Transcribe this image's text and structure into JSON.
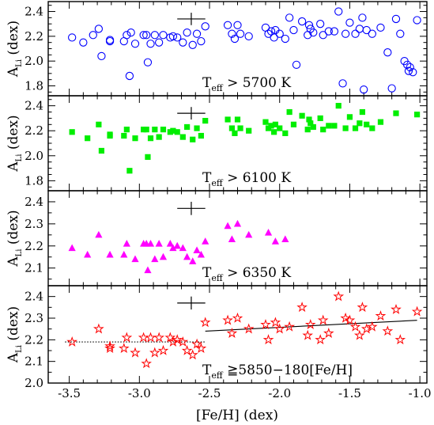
{
  "chart_data": {
    "type": "scatter",
    "x_label": "[Fe/H] (dex)",
    "x_ticks": [
      "-3.5",
      "-3.0",
      "-2.5",
      "-2.0",
      "-1.5",
      "-1.0"
    ],
    "x_tick_values": [
      -3.5,
      -3.0,
      -2.5,
      -2.0,
      -1.5,
      -1.0
    ],
    "xlim": [
      -3.65,
      -0.95
    ],
    "panels": [
      {
        "id": "p1",
        "ylim": [
          1.72,
          2.48
        ],
        "y_ticks": [
          "1.8",
          "2.0",
          "2.2",
          "2.4"
        ],
        "y_tick_values": [
          1.8,
          2.0,
          2.2,
          2.4
        ],
        "ylabel_main": "A",
        "ylabel_sub": "Li",
        "ylabel_unit": " (dex)",
        "annotation_main": "T",
        "annotation_sub": "eff",
        "annotation_rest": " > 5700 K",
        "marker": "circle",
        "color": "#0000ff",
        "errorbar": {
          "x": -2.63,
          "y": 2.34,
          "xerr": 0.1,
          "yerr": 0.05
        },
        "points": [
          [
            -3.48,
            2.19
          ],
          [
            -3.4,
            2.15
          ],
          [
            -3.33,
            2.21
          ],
          [
            -3.29,
            2.26
          ],
          [
            -3.27,
            2.04
          ],
          [
            -3.21,
            2.16
          ],
          [
            -3.21,
            2.17
          ],
          [
            -3.11,
            2.16
          ],
          [
            -3.09,
            2.21
          ],
          [
            -3.07,
            1.88
          ],
          [
            -3.06,
            2.23
          ],
          [
            -3.03,
            2.14
          ],
          [
            -2.97,
            2.21
          ],
          [
            -2.95,
            2.21
          ],
          [
            -2.94,
            1.99
          ],
          [
            -2.92,
            2.14
          ],
          [
            -2.89,
            2.21
          ],
          [
            -2.86,
            2.15
          ],
          [
            -2.83,
            2.21
          ],
          [
            -2.78,
            2.19
          ],
          [
            -2.76,
            2.2
          ],
          [
            -2.73,
            2.19
          ],
          [
            -2.69,
            2.15
          ],
          [
            -2.66,
            2.23
          ],
          [
            -2.62,
            2.13
          ],
          [
            -2.59,
            2.22
          ],
          [
            -2.56,
            2.16
          ],
          [
            -2.53,
            2.28
          ],
          [
            -2.37,
            2.29
          ],
          [
            -2.34,
            2.22
          ],
          [
            -2.32,
            2.18
          ],
          [
            -2.3,
            2.29
          ],
          [
            -2.28,
            2.22
          ],
          [
            -2.22,
            2.2
          ],
          [
            -2.1,
            2.27
          ],
          [
            -2.08,
            2.22
          ],
          [
            -2.06,
            2.24
          ],
          [
            -2.04,
            2.19
          ],
          [
            -2.03,
            2.25
          ],
          [
            -2.0,
            2.22
          ],
          [
            -1.96,
            2.18
          ],
          [
            -1.93,
            2.35
          ],
          [
            -1.9,
            2.25
          ],
          [
            -1.88,
            1.97
          ],
          [
            -1.84,
            2.32
          ],
          [
            -1.8,
            2.21
          ],
          [
            -1.79,
            2.29
          ],
          [
            -1.78,
            2.26
          ],
          [
            -1.76,
            2.23
          ],
          [
            -1.71,
            2.3
          ],
          [
            -1.69,
            2.21
          ],
          [
            -1.65,
            2.24
          ],
          [
            -1.61,
            2.24
          ],
          [
            -1.58,
            2.4
          ],
          [
            -1.55,
            1.82
          ],
          [
            -1.53,
            2.22
          ],
          [
            -1.5,
            2.31
          ],
          [
            -1.46,
            2.22
          ],
          [
            -1.43,
            2.26
          ],
          [
            -1.41,
            2.35
          ],
          [
            -1.4,
            1.77
          ],
          [
            -1.38,
            2.25
          ],
          [
            -1.34,
            2.22
          ],
          [
            -1.28,
            2.27
          ],
          [
            -1.23,
            2.07
          ],
          [
            -1.2,
            1.78
          ],
          [
            -1.17,
            2.34
          ],
          [
            -1.14,
            2.22
          ],
          [
            -1.11,
            2.0
          ],
          [
            -1.09,
            1.97
          ],
          [
            -1.08,
            1.92
          ],
          [
            -1.07,
            1.95
          ],
          [
            -1.05,
            1.91
          ],
          [
            -1.02,
            2.33
          ]
        ]
      },
      {
        "id": "p2",
        "ylim": [
          1.72,
          2.48
        ],
        "y_ticks": [
          "1.8",
          "2.0",
          "2.2",
          "2.4"
        ],
        "y_tick_values": [
          1.8,
          2.0,
          2.2,
          2.4
        ],
        "ylabel_main": "A",
        "ylabel_sub": "Li",
        "ylabel_unit": " (dex)",
        "annotation_main": "T",
        "annotation_sub": "eff",
        "annotation_rest": " > 6100 K",
        "marker": "square",
        "color": "#00ee00",
        "errorbar": {
          "x": -2.63,
          "y": 2.34,
          "xerr": 0.1,
          "yerr": 0.05
        },
        "points": [
          [
            -3.48,
            2.19
          ],
          [
            -3.37,
            2.14
          ],
          [
            -3.29,
            2.25
          ],
          [
            -3.27,
            2.04
          ],
          [
            -3.21,
            2.16
          ],
          [
            -3.21,
            2.17
          ],
          [
            -3.11,
            2.16
          ],
          [
            -3.09,
            2.21
          ],
          [
            -3.07,
            1.88
          ],
          [
            -3.03,
            2.14
          ],
          [
            -2.97,
            2.21
          ],
          [
            -2.95,
            2.21
          ],
          [
            -2.94,
            1.99
          ],
          [
            -2.92,
            2.14
          ],
          [
            -2.89,
            2.21
          ],
          [
            -2.86,
            2.15
          ],
          [
            -2.83,
            2.21
          ],
          [
            -2.78,
            2.19
          ],
          [
            -2.76,
            2.2
          ],
          [
            -2.73,
            2.19
          ],
          [
            -2.69,
            2.15
          ],
          [
            -2.66,
            2.23
          ],
          [
            -2.62,
            2.13
          ],
          [
            -2.59,
            2.22
          ],
          [
            -2.56,
            2.16
          ],
          [
            -2.53,
            2.28
          ],
          [
            -2.37,
            2.29
          ],
          [
            -2.34,
            2.22
          ],
          [
            -2.32,
            2.18
          ],
          [
            -2.3,
            2.29
          ],
          [
            -2.28,
            2.22
          ],
          [
            -2.22,
            2.2
          ],
          [
            -2.1,
            2.27
          ],
          [
            -2.08,
            2.22
          ],
          [
            -2.06,
            2.24
          ],
          [
            -2.04,
            2.19
          ],
          [
            -2.03,
            2.25
          ],
          [
            -2.0,
            2.22
          ],
          [
            -1.96,
            2.18
          ],
          [
            -1.93,
            2.35
          ],
          [
            -1.9,
            2.25
          ],
          [
            -1.84,
            2.32
          ],
          [
            -1.8,
            2.21
          ],
          [
            -1.79,
            2.29
          ],
          [
            -1.78,
            2.26
          ],
          [
            -1.76,
            2.23
          ],
          [
            -1.71,
            2.3
          ],
          [
            -1.69,
            2.21
          ],
          [
            -1.65,
            2.24
          ],
          [
            -1.61,
            2.24
          ],
          [
            -1.58,
            2.4
          ],
          [
            -1.53,
            2.22
          ],
          [
            -1.5,
            2.31
          ],
          [
            -1.46,
            2.22
          ],
          [
            -1.43,
            2.26
          ],
          [
            -1.41,
            2.35
          ],
          [
            -1.38,
            2.25
          ],
          [
            -1.34,
            2.22
          ],
          [
            -1.28,
            2.27
          ],
          [
            -1.17,
            2.34
          ],
          [
            -1.02,
            2.33
          ]
        ]
      },
      {
        "id": "p3",
        "ylim": [
          2.02,
          2.45
        ],
        "y_ticks": [
          "2.1",
          "2.2",
          "2.3",
          "2.4"
        ],
        "y_tick_values": [
          2.1,
          2.2,
          2.3,
          2.4
        ],
        "ylabel_main": "A",
        "ylabel_sub": "Li",
        "ylabel_unit": " (dex)",
        "annotation_main": "T",
        "annotation_sub": "eff",
        "annotation_rest": " > 6350 K",
        "marker": "triangle",
        "color": "#ff00ff",
        "errorbar": {
          "x": -2.63,
          "y": 2.37,
          "xerr": 0.1,
          "yerr": 0.03
        },
        "points": [
          [
            -3.48,
            2.19
          ],
          [
            -3.37,
            2.16
          ],
          [
            -3.29,
            2.25
          ],
          [
            -3.21,
            2.16
          ],
          [
            -3.11,
            2.16
          ],
          [
            -3.09,
            2.21
          ],
          [
            -3.03,
            2.14
          ],
          [
            -2.97,
            2.21
          ],
          [
            -2.95,
            2.21
          ],
          [
            -2.94,
            2.09
          ],
          [
            -2.92,
            2.21
          ],
          [
            -2.89,
            2.14
          ],
          [
            -2.86,
            2.21
          ],
          [
            -2.83,
            2.15
          ],
          [
            -2.78,
            2.21
          ],
          [
            -2.76,
            2.19
          ],
          [
            -2.73,
            2.2
          ],
          [
            -2.69,
            2.19
          ],
          [
            -2.66,
            2.15
          ],
          [
            -2.62,
            2.13
          ],
          [
            -2.59,
            2.18
          ],
          [
            -2.56,
            2.16
          ],
          [
            -2.53,
            2.22
          ],
          [
            -2.37,
            2.29
          ],
          [
            -2.34,
            2.23
          ],
          [
            -2.3,
            2.3
          ],
          [
            -2.22,
            2.25
          ],
          [
            -2.08,
            2.26
          ],
          [
            -2.03,
            2.22
          ],
          [
            -1.96,
            2.23
          ]
        ]
      },
      {
        "id": "p4",
        "ylim": [
          2.0,
          2.45
        ],
        "y_ticks": [
          "2.0",
          "2.1",
          "2.2",
          "2.3",
          "2.4"
        ],
        "y_tick_values": [
          2.0,
          2.1,
          2.2,
          2.3,
          2.4
        ],
        "ylabel_main": "A",
        "ylabel_sub": "Li",
        "ylabel_unit": " (dex)",
        "annotation_main": "T",
        "annotation_sub": "eff",
        "annotation_rest": " ≧5850−180[Fe/H]",
        "marker": "star",
        "color": "#ff0000",
        "errorbar": {
          "x": -2.63,
          "y": 2.37,
          "xerr": 0.1,
          "yerr": 0.03
        },
        "fit_lines": [
          {
            "style": "dotted",
            "x": [
              -3.53,
              -2.53
            ],
            "y": [
              2.19,
              2.19
            ]
          },
          {
            "style": "solid",
            "x": [
              -2.53,
              -1.02
            ],
            "y": [
              2.24,
              2.29
            ]
          }
        ],
        "points": [
          [
            -3.48,
            2.19
          ],
          [
            -3.29,
            2.25
          ],
          [
            -3.21,
            2.16
          ],
          [
            -3.21,
            2.17
          ],
          [
            -3.11,
            2.16
          ],
          [
            -3.09,
            2.21
          ],
          [
            -3.03,
            2.14
          ],
          [
            -2.97,
            2.21
          ],
          [
            -2.95,
            2.09
          ],
          [
            -2.92,
            2.21
          ],
          [
            -2.89,
            2.14
          ],
          [
            -2.86,
            2.21
          ],
          [
            -2.83,
            2.15
          ],
          [
            -2.78,
            2.21
          ],
          [
            -2.76,
            2.19
          ],
          [
            -2.73,
            2.2
          ],
          [
            -2.69,
            2.19
          ],
          [
            -2.66,
            2.15
          ],
          [
            -2.62,
            2.13
          ],
          [
            -2.59,
            2.18
          ],
          [
            -2.56,
            2.16
          ],
          [
            -2.53,
            2.28
          ],
          [
            -2.37,
            2.29
          ],
          [
            -2.34,
            2.23
          ],
          [
            -2.3,
            2.3
          ],
          [
            -2.22,
            2.25
          ],
          [
            -2.1,
            2.27
          ],
          [
            -2.08,
            2.2
          ],
          [
            -2.03,
            2.28
          ],
          [
            -2.0,
            2.25
          ],
          [
            -1.93,
            2.26
          ],
          [
            -1.84,
            2.35
          ],
          [
            -1.8,
            2.22
          ],
          [
            -1.78,
            2.27
          ],
          [
            -1.71,
            2.2
          ],
          [
            -1.69,
            2.29
          ],
          [
            -1.65,
            2.23
          ],
          [
            -1.58,
            2.4
          ],
          [
            -1.53,
            2.3
          ],
          [
            -1.5,
            2.29
          ],
          [
            -1.46,
            2.26
          ],
          [
            -1.43,
            2.22
          ],
          [
            -1.41,
            2.35
          ],
          [
            -1.38,
            2.25
          ],
          [
            -1.34,
            2.26
          ],
          [
            -1.28,
            2.31
          ],
          [
            -1.23,
            2.24
          ],
          [
            -1.17,
            2.34
          ],
          [
            -1.14,
            2.2
          ],
          [
            -1.02,
            2.33
          ]
        ]
      }
    ]
  }
}
